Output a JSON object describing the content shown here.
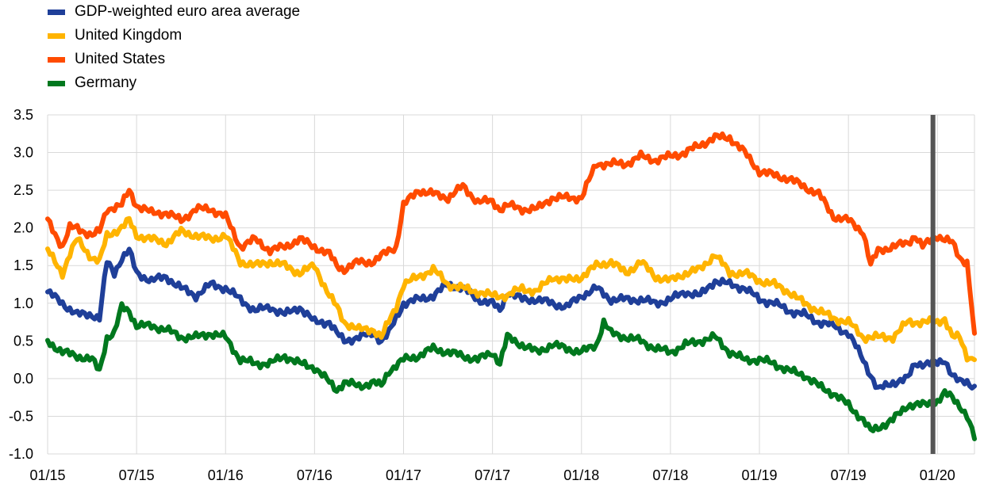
{
  "chart_data": {
    "type": "line",
    "title": "",
    "xlabel": "",
    "ylabel": "",
    "x_ticks": [
      "01/15",
      "07/15",
      "01/16",
      "07/16",
      "01/17",
      "07/17",
      "01/18",
      "07/18",
      "01/19",
      "07/19",
      "01/20"
    ],
    "x_range": [
      0,
      62.5
    ],
    "ylim": [
      -1.0,
      3.5
    ],
    "y_ticks": [
      "3.5",
      "3.0",
      "2.5",
      "2.0",
      "1.5",
      "1.0",
      "0.5",
      "0.0",
      "-0.5",
      "-1.0"
    ],
    "y_tick_values": [
      3.5,
      3.0,
      2.5,
      2.0,
      1.5,
      1.0,
      0.5,
      0.0,
      -0.5,
      -1.0
    ],
    "grid": "vertical and horizontal",
    "legend_position": "top-left above plot",
    "vertical_marker": {
      "x": 59.7,
      "color": "#555555"
    },
    "series": [
      {
        "name": "GDP-weighted euro area average",
        "color": "#1f3f99",
        "points": [
          [
            0,
            1.15
          ],
          [
            1,
            1.0
          ],
          [
            2,
            0.85
          ],
          [
            3,
            0.85
          ],
          [
            3.5,
            0.8
          ],
          [
            4,
            1.55
          ],
          [
            4.5,
            1.4
          ],
          [
            5,
            1.6
          ],
          [
            5.5,
            1.7
          ],
          [
            6,
            1.4
          ],
          [
            7,
            1.3
          ],
          [
            8,
            1.35
          ],
          [
            9,
            1.2
          ],
          [
            10,
            1.1
          ],
          [
            11,
            1.25
          ],
          [
            12,
            1.2
          ],
          [
            13,
            1.05
          ],
          [
            14,
            0.9
          ],
          [
            15,
            0.95
          ],
          [
            16,
            0.85
          ],
          [
            17,
            0.95
          ],
          [
            18,
            0.75
          ],
          [
            19,
            0.75
          ],
          [
            19.5,
            0.6
          ],
          [
            20,
            0.5
          ],
          [
            21,
            0.55
          ],
          [
            22,
            0.6
          ],
          [
            22.5,
            0.5
          ],
          [
            23,
            0.6
          ],
          [
            24,
            1.0
          ],
          [
            25,
            1.05
          ],
          [
            26,
            1.1
          ],
          [
            27,
            1.25
          ],
          [
            28,
            1.2
          ],
          [
            29,
            1.05
          ],
          [
            30,
            1.0
          ],
          [
            30.5,
            0.9
          ],
          [
            31,
            1.15
          ],
          [
            32,
            1.05
          ],
          [
            33,
            1.05
          ],
          [
            34,
            1.0
          ],
          [
            35,
            0.95
          ],
          [
            36,
            1.1
          ],
          [
            37,
            1.2
          ],
          [
            38,
            1.05
          ],
          [
            39,
            1.05
          ],
          [
            40,
            1.05
          ],
          [
            41,
            1.0
          ],
          [
            42,
            1.05
          ],
          [
            43,
            1.15
          ],
          [
            44,
            1.1
          ],
          [
            45,
            1.3
          ],
          [
            46,
            1.25
          ],
          [
            47,
            1.2
          ],
          [
            48,
            1.05
          ],
          [
            49,
            1.0
          ],
          [
            50,
            0.9
          ],
          [
            51,
            0.85
          ],
          [
            52,
            0.75
          ],
          [
            53,
            0.7
          ],
          [
            54,
            0.6
          ],
          [
            55,
            0.25
          ],
          [
            55.5,
            0.05
          ],
          [
            56,
            -0.15
          ],
          [
            57,
            -0.05
          ],
          [
            58,
            0.0
          ],
          [
            58.5,
            0.2
          ],
          [
            59,
            0.2
          ],
          [
            60,
            0.2
          ],
          [
            60.5,
            0.25
          ],
          [
            61,
            0.05
          ],
          [
            61.5,
            -0.05
          ],
          [
            62,
            -0.05
          ],
          [
            62.5,
            -0.1
          ]
        ]
      },
      {
        "name": "United Kingdom",
        "color": "#ffb400",
        "points": [
          [
            0,
            1.7
          ],
          [
            1,
            1.4
          ],
          [
            1.5,
            1.65
          ],
          [
            2,
            1.85
          ],
          [
            3,
            1.6
          ],
          [
            3.5,
            1.55
          ],
          [
            4,
            1.9
          ],
          [
            5,
            2.0
          ],
          [
            5.5,
            2.1
          ],
          [
            6,
            1.9
          ],
          [
            7,
            1.85
          ],
          [
            8,
            1.8
          ],
          [
            9,
            1.95
          ],
          [
            10,
            1.9
          ],
          [
            11,
            1.85
          ],
          [
            12,
            1.9
          ],
          [
            13,
            1.55
          ],
          [
            14,
            1.5
          ],
          [
            15,
            1.55
          ],
          [
            16,
            1.5
          ],
          [
            17,
            1.4
          ],
          [
            18,
            1.5
          ],
          [
            19,
            1.1
          ],
          [
            19.5,
            0.95
          ],
          [
            20,
            0.75
          ],
          [
            21,
            0.65
          ],
          [
            22,
            0.65
          ],
          [
            22.5,
            0.55
          ],
          [
            23,
            0.75
          ],
          [
            23.5,
            0.95
          ],
          [
            24,
            1.25
          ],
          [
            25,
            1.35
          ],
          [
            26,
            1.45
          ],
          [
            27,
            1.25
          ],
          [
            28,
            1.2
          ],
          [
            29,
            1.15
          ],
          [
            30,
            1.1
          ],
          [
            31,
            1.1
          ],
          [
            32,
            1.2
          ],
          [
            33,
            1.15
          ],
          [
            34,
            1.35
          ],
          [
            35,
            1.3
          ],
          [
            36,
            1.35
          ],
          [
            37,
            1.5
          ],
          [
            38,
            1.55
          ],
          [
            39,
            1.4
          ],
          [
            40,
            1.55
          ],
          [
            41,
            1.35
          ],
          [
            42,
            1.3
          ],
          [
            43,
            1.4
          ],
          [
            44,
            1.45
          ],
          [
            45,
            1.65
          ],
          [
            46,
            1.4
          ],
          [
            47,
            1.4
          ],
          [
            48,
            1.3
          ],
          [
            49,
            1.25
          ],
          [
            50,
            1.15
          ],
          [
            51,
            1.0
          ],
          [
            52,
            0.9
          ],
          [
            53,
            0.8
          ],
          [
            54,
            0.75
          ],
          [
            55,
            0.55
          ],
          [
            56,
            0.55
          ],
          [
            57,
            0.55
          ],
          [
            58,
            0.75
          ],
          [
            59,
            0.75
          ],
          [
            60,
            0.75
          ],
          [
            60.5,
            0.8
          ],
          [
            61,
            0.55
          ],
          [
            61.5,
            0.55
          ],
          [
            62,
            0.3
          ],
          [
            62.5,
            0.25
          ]
        ]
      },
      {
        "name": "United States",
        "color": "#ff4b00",
        "points": [
          [
            0,
            2.1
          ],
          [
            1,
            1.75
          ],
          [
            1.5,
            2.0
          ],
          [
            2,
            2.0
          ],
          [
            3,
            1.9
          ],
          [
            3.5,
            1.95
          ],
          [
            4,
            2.25
          ],
          [
            5,
            2.3
          ],
          [
            5.5,
            2.5
          ],
          [
            6,
            2.3
          ],
          [
            7,
            2.2
          ],
          [
            8,
            2.2
          ],
          [
            9,
            2.1
          ],
          [
            10,
            2.25
          ],
          [
            11,
            2.25
          ],
          [
            12,
            2.15
          ],
          [
            13,
            1.75
          ],
          [
            14,
            1.85
          ],
          [
            15,
            1.7
          ],
          [
            16,
            1.75
          ],
          [
            17,
            1.85
          ],
          [
            18,
            1.75
          ],
          [
            19,
            1.65
          ],
          [
            19.5,
            1.5
          ],
          [
            20,
            1.45
          ],
          [
            21,
            1.55
          ],
          [
            22,
            1.55
          ],
          [
            23,
            1.7
          ],
          [
            23.5,
            1.75
          ],
          [
            24,
            2.3
          ],
          [
            25,
            2.5
          ],
          [
            26,
            2.45
          ],
          [
            27,
            2.4
          ],
          [
            28,
            2.55
          ],
          [
            29,
            2.35
          ],
          [
            30,
            2.35
          ],
          [
            30.5,
            2.25
          ],
          [
            31,
            2.3
          ],
          [
            32,
            2.25
          ],
          [
            33,
            2.25
          ],
          [
            34,
            2.4
          ],
          [
            35,
            2.4
          ],
          [
            36,
            2.4
          ],
          [
            37,
            2.85
          ],
          [
            38,
            2.85
          ],
          [
            39,
            2.85
          ],
          [
            40,
            2.95
          ],
          [
            41,
            2.9
          ],
          [
            42,
            2.95
          ],
          [
            43,
            3.0
          ],
          [
            44,
            3.1
          ],
          [
            45,
            3.2
          ],
          [
            46,
            3.2
          ],
          [
            47,
            3.0
          ],
          [
            48,
            2.75
          ],
          [
            49,
            2.7
          ],
          [
            50,
            2.65
          ],
          [
            51,
            2.55
          ],
          [
            52,
            2.45
          ],
          [
            53,
            2.15
          ],
          [
            54,
            2.1
          ],
          [
            55,
            1.95
          ],
          [
            55.5,
            1.5
          ],
          [
            56,
            1.7
          ],
          [
            57,
            1.75
          ],
          [
            58,
            1.8
          ],
          [
            58.5,
            1.9
          ],
          [
            59,
            1.75
          ],
          [
            60,
            1.9
          ],
          [
            61,
            1.8
          ],
          [
            61.5,
            1.6
          ],
          [
            62,
            1.55
          ],
          [
            62.5,
            0.6
          ]
        ]
      },
      {
        "name": "Germany",
        "color": "#00781e",
        "points": [
          [
            0,
            0.5
          ],
          [
            1,
            0.35
          ],
          [
            2,
            0.3
          ],
          [
            3,
            0.25
          ],
          [
            3.5,
            0.1
          ],
          [
            4,
            0.55
          ],
          [
            4.5,
            0.6
          ],
          [
            5,
            0.95
          ],
          [
            5.5,
            0.9
          ],
          [
            6,
            0.7
          ],
          [
            7,
            0.7
          ],
          [
            8,
            0.65
          ],
          [
            9,
            0.55
          ],
          [
            10,
            0.55
          ],
          [
            11,
            0.6
          ],
          [
            12,
            0.55
          ],
          [
            13,
            0.25
          ],
          [
            14,
            0.2
          ],
          [
            15,
            0.2
          ],
          [
            16,
            0.3
          ],
          [
            17,
            0.2
          ],
          [
            18,
            0.15
          ],
          [
            19,
            -0.05
          ],
          [
            19.5,
            -0.15
          ],
          [
            20,
            -0.05
          ],
          [
            21,
            -0.1
          ],
          [
            22,
            -0.05
          ],
          [
            22.5,
            -0.1
          ],
          [
            23,
            0.1
          ],
          [
            24,
            0.25
          ],
          [
            25,
            0.3
          ],
          [
            26,
            0.4
          ],
          [
            27,
            0.35
          ],
          [
            28,
            0.3
          ],
          [
            29,
            0.25
          ],
          [
            30,
            0.35
          ],
          [
            30.5,
            0.2
          ],
          [
            31,
            0.55
          ],
          [
            32,
            0.45
          ],
          [
            33,
            0.35
          ],
          [
            34,
            0.45
          ],
          [
            35,
            0.4
          ],
          [
            36,
            0.35
          ],
          [
            37,
            0.45
          ],
          [
            37.5,
            0.75
          ],
          [
            38,
            0.6
          ],
          [
            39,
            0.55
          ],
          [
            40,
            0.5
          ],
          [
            41,
            0.4
          ],
          [
            42,
            0.35
          ],
          [
            43,
            0.45
          ],
          [
            44,
            0.5
          ],
          [
            45,
            0.55
          ],
          [
            46,
            0.35
          ],
          [
            47,
            0.25
          ],
          [
            48,
            0.25
          ],
          [
            49,
            0.2
          ],
          [
            50,
            0.1
          ],
          [
            51,
            0.05
          ],
          [
            52,
            -0.1
          ],
          [
            53,
            -0.2
          ],
          [
            54,
            -0.35
          ],
          [
            55,
            -0.55
          ],
          [
            55.5,
            -0.7
          ],
          [
            56,
            -0.65
          ],
          [
            57,
            -0.55
          ],
          [
            58,
            -0.35
          ],
          [
            59,
            -0.35
          ],
          [
            60,
            -0.3
          ],
          [
            60.5,
            -0.2
          ],
          [
            61,
            -0.25
          ],
          [
            61.5,
            -0.35
          ],
          [
            62,
            -0.5
          ],
          [
            62.5,
            -0.8
          ]
        ]
      }
    ]
  }
}
